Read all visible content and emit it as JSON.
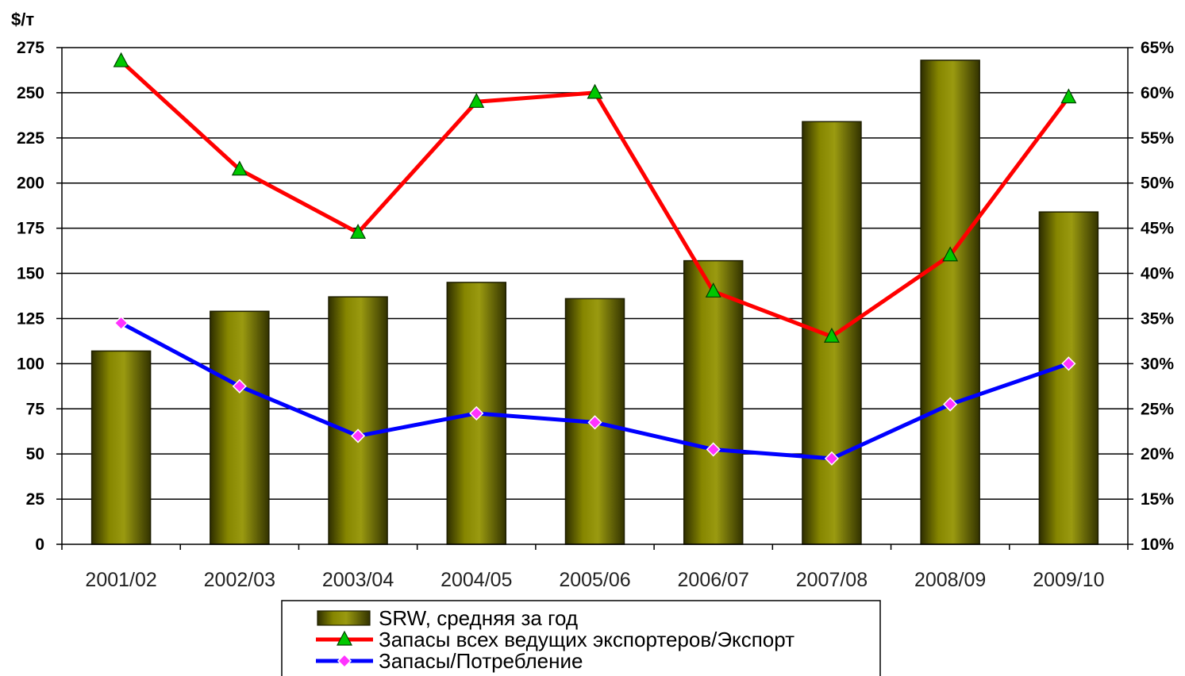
{
  "chart_data": {
    "type": "bar",
    "y_unit_label": "$/т",
    "categories": [
      "2001/02",
      "2002/03",
      "2003/04",
      "2004/05",
      "2005/06",
      "2006/07",
      "2007/08",
      "2008/09",
      "2009/10"
    ],
    "ylim": [
      0,
      275
    ],
    "yticks": [
      "0",
      "25",
      "50",
      "75",
      "100",
      "125",
      "150",
      "175",
      "200",
      "225",
      "250",
      "275"
    ],
    "y2lim": [
      10,
      65
    ],
    "y2ticks": [
      "10%",
      "15%",
      "20%",
      "25%",
      "30%",
      "35%",
      "40%",
      "45%",
      "50%",
      "55%",
      "60%",
      "65%"
    ],
    "grid": true,
    "legend_position": "bottom-center",
    "series": [
      {
        "name": "SRW, средняя за год",
        "type": "bar",
        "axis": "left",
        "color": "#6b6b00",
        "values": [
          107,
          129,
          137,
          145,
          136,
          157,
          234,
          268,
          184
        ]
      },
      {
        "name": "Запасы всех ведущих экспортеров/Экспорт",
        "type": "line",
        "axis": "right",
        "color": "#ff0000",
        "marker": "triangle",
        "marker_color": "#00c800",
        "values": [
          63.5,
          51.5,
          44.5,
          59,
          60,
          38,
          33,
          42,
          59.5
        ]
      },
      {
        "name": "Запасы/Потребление",
        "type": "line",
        "axis": "right",
        "color": "#0000ff",
        "marker": "diamond",
        "marker_color": "#ff33ff",
        "values": [
          34.5,
          27.5,
          22,
          24.5,
          23.5,
          20.5,
          19.5,
          25.5,
          30
        ]
      }
    ]
  }
}
